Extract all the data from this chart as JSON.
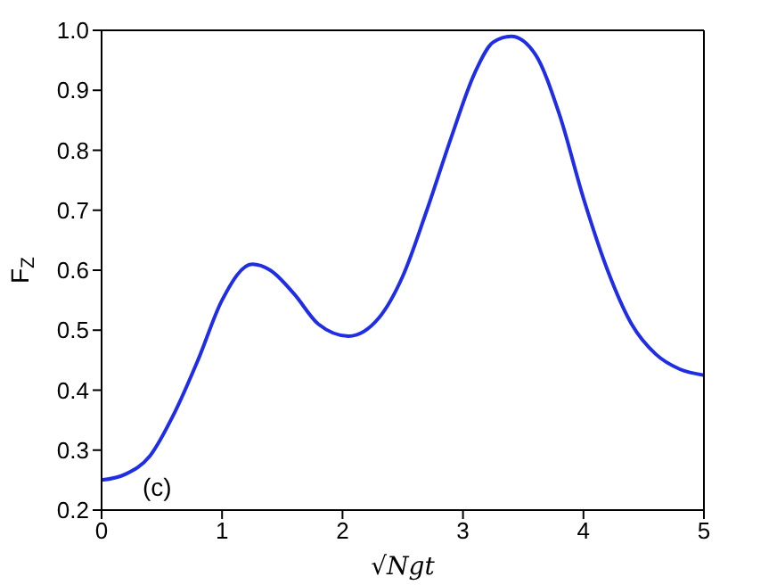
{
  "chart_data": {
    "type": "line",
    "xlabel": "√Ngt",
    "ylabel": "F$_{Z}$",
    "annotations": [
      "(c)"
    ],
    "x": [
      0,
      0.2,
      0.4,
      0.6,
      0.8,
      1.0,
      1.25,
      1.4,
      1.6,
      1.8,
      2.05,
      2.3,
      2.5,
      2.7,
      2.9,
      3.1,
      3.25,
      3.4,
      3.6,
      3.8,
      4.0,
      4.2,
      4.4,
      4.6,
      4.8,
      5.0
    ],
    "series": [
      {
        "color": "#1f2ee6",
        "values": [
          0.25,
          0.26,
          0.29,
          0.36,
          0.45,
          0.55,
          0.61,
          0.6,
          0.56,
          0.51,
          0.49,
          0.52,
          0.59,
          0.7,
          0.82,
          0.93,
          0.98,
          0.99,
          0.96,
          0.86,
          0.72,
          0.6,
          0.51,
          0.46,
          0.435,
          0.425
        ]
      }
    ],
    "xlim": [
      0,
      5
    ],
    "xticks": [
      0,
      1,
      2,
      3,
      4,
      5
    ],
    "ylim": [
      0.2,
      1.0
    ],
    "yticks": [
      0.2,
      0.3,
      0.4,
      0.5,
      0.6,
      0.7,
      0.8,
      0.9,
      {
        "value": 1,
        "label": "1.0"
      }
    ],
    "grid": false,
    "legend": false,
    "marker": "none",
    "line_style": "solid"
  }
}
